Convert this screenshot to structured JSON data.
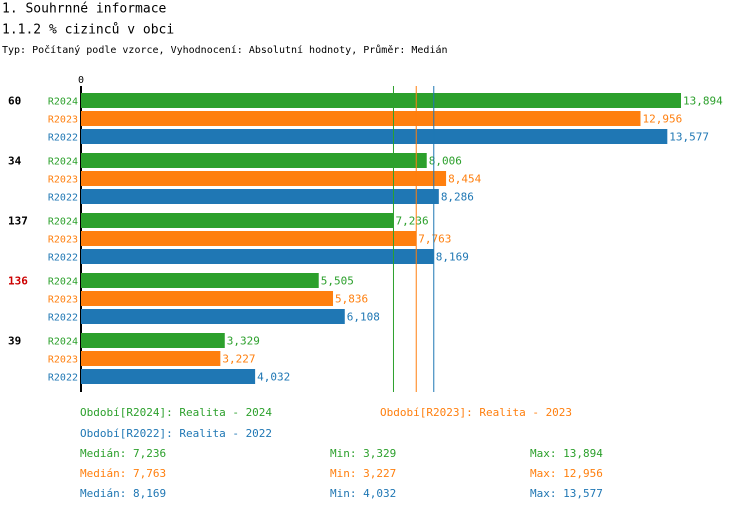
{
  "header": {
    "title": "1. Souhrnné informace",
    "subtitle": "1.1.2 % cizinců v obci",
    "info": "Typ: Počítaný podle vzorce, Vyhodnocení: Absolutní hodnoty, Průměr: Medián"
  },
  "chart_data": {
    "type": "bar",
    "orientation": "horizontal",
    "categories": [
      "60",
      "34",
      "137",
      "136",
      "39"
    ],
    "category_label_colors": [
      "#000000",
      "#000000",
      "#000000",
      "#cc0000",
      "#000000"
    ],
    "xlim": [
      0,
      13894
    ],
    "xticks": [
      0
    ],
    "series": [
      {
        "name": "R2024",
        "legend": "Období[R2024]: Realita - 2024",
        "color": "#2ca02c",
        "values": [
          13894,
          8006,
          7236,
          5505,
          3329
        ],
        "value_labels": [
          "13,894",
          "8,006",
          "7,236",
          "5,505",
          "3,329"
        ],
        "median": 7236,
        "median_label": "Medián: 7,236",
        "min": 3329,
        "min_label": "Min: 3,329",
        "max": 13894,
        "max_label": "Max: 13,894"
      },
      {
        "name": "R2023",
        "legend": "Období[R2023]: Realita - 2023",
        "color": "#ff7f0e",
        "values": [
          12956,
          8454,
          7763,
          5836,
          3227
        ],
        "value_labels": [
          "12,956",
          "8,454",
          "7,763",
          "5,836",
          "3,227"
        ],
        "median": 7763,
        "median_label": "Medián: 7,763",
        "min": 3227,
        "min_label": "Min: 3,227",
        "max": 12956,
        "max_label": "Max: 12,956"
      },
      {
        "name": "R2022",
        "legend": "Období[R2022]: Realita - 2022",
        "color": "#1f77b4",
        "values": [
          13577,
          8286,
          8169,
          6108,
          4032
        ],
        "value_labels": [
          "13,577",
          "8,286",
          "8,169",
          "6,108",
          "4,032"
        ],
        "median": 8169,
        "median_label": "Medián: 8,169",
        "min": 4032,
        "min_label": "Min: 4,032",
        "max": 13577,
        "max_label": "Max: 13,577"
      }
    ]
  }
}
